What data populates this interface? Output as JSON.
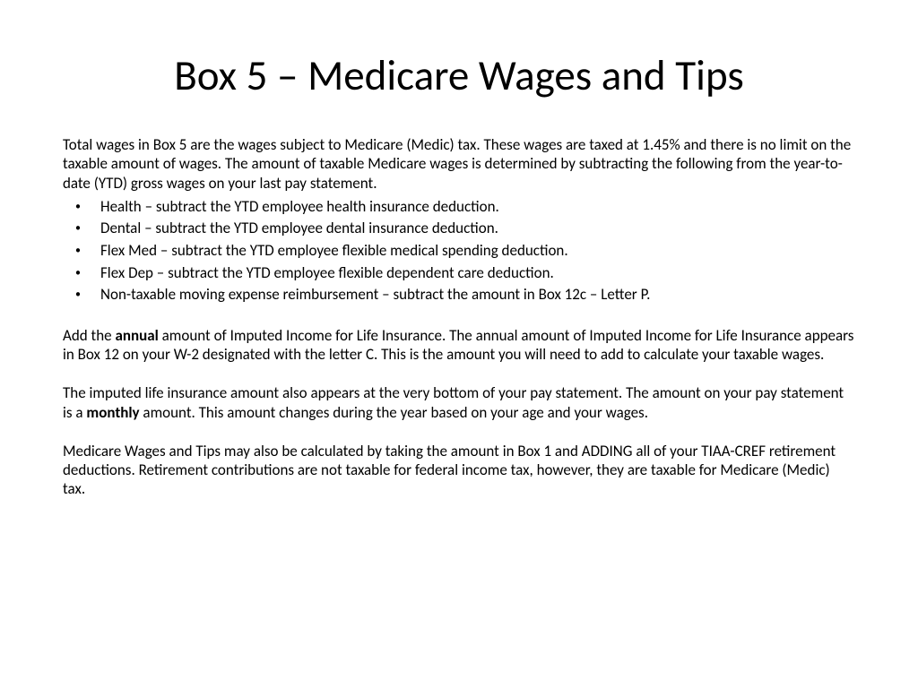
{
  "title": "Box 5 – Medicare Wages and Tips",
  "intro": "Total wages in Box 5 are the wages subject to Medicare (Medic) tax.  These wages are taxed at 1.45% and there is no limit on the taxable amount of wages.  The amount of taxable Medicare wages is determined by subtracting the following from the year-to-date (YTD) gross wages on your last pay statement.",
  "bullets": [
    "Health – subtract the YTD employee health insurance deduction.",
    "Dental – subtract the YTD employee dental insurance deduction.",
    "Flex Med – subtract the YTD employee flexible medical spending deduction.",
    "Flex Dep – subtract the YTD employee flexible dependent care deduction.",
    "Non-taxable moving expense reimbursement – subtract the amount in Box 12c – Letter P."
  ],
  "para1_a": "Add the ",
  "para1_bold": "annual",
  "para1_b": " amount of Imputed Income for Life Insurance. The annual amount of Imputed Income for Life Insurance appears in Box 12 on your W-2 designated with the letter C.  This is the amount you will need to add to calculate your taxable wages.",
  "para2_a": "The imputed life insurance amount also appears at the very bottom of your pay statement.  The amount on your pay statement is a ",
  "para2_bold": "monthly",
  "para2_b": " amount.  This amount changes during the year based on your age and your wages.",
  "para3": "Medicare Wages and Tips may also be calculated by taking the amount in Box 1 and ADDING all of your TIAA-CREF retirement deductions.  Retirement contributions are not taxable for federal income tax, however, they are taxable for Medicare (Medic) tax.",
  "style": {
    "background": "#ffffff",
    "text_color": "#000000",
    "title_fontsize": 47,
    "body_fontsize": 17,
    "font_family": "Calibri"
  }
}
